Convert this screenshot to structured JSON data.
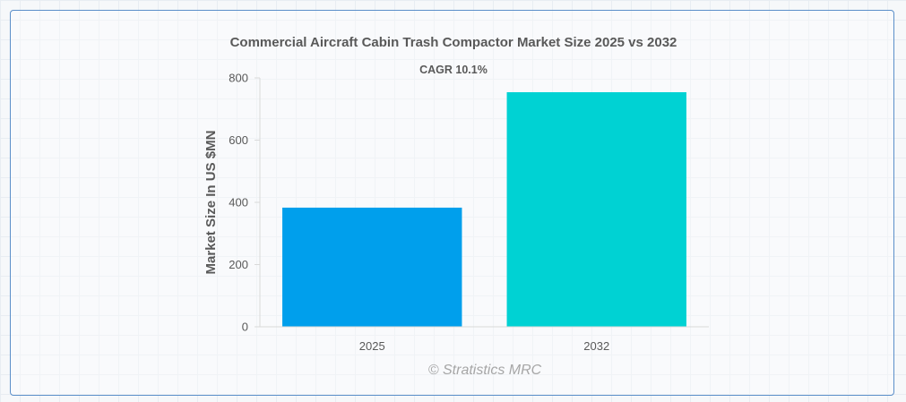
{
  "chart_data": {
    "type": "bar",
    "title": "Commercial Aircraft Cabin Trash Compactor Market Size 2025 vs 2032",
    "subtitle": "CAGR 10.1%",
    "xlabel": "",
    "ylabel": "Market Size In US $MN",
    "categories": [
      "2025",
      "2032"
    ],
    "values": [
      383,
      754
    ],
    "colors": [
      "#009fec",
      "#00d2d3"
    ],
    "ylim": [
      0,
      800
    ],
    "yticks": [
      0,
      200,
      400,
      600,
      800
    ],
    "grid": false,
    "legend": "none"
  },
  "watermark": "© Stratistics MRC"
}
